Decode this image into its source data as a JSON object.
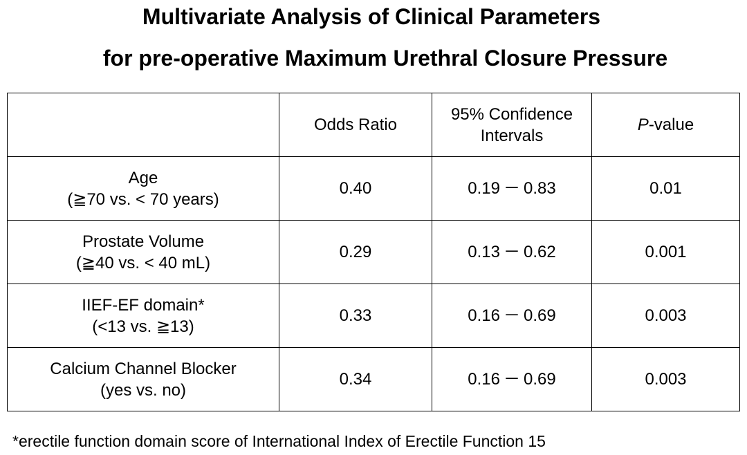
{
  "title": {
    "line1": "Multivariate Analysis of Clinical Parameters",
    "line2": "for pre-operative Maximum Urethral Closure Pressure"
  },
  "table": {
    "headers": {
      "blank": "",
      "odds_ratio": "Odds Ratio",
      "ci_line1": "95% Confidence",
      "ci_line2": "Intervals",
      "p_italic": "P",
      "p_rest": "-value"
    },
    "rows": [
      {
        "name": "Age",
        "detail": "(≧70 vs. < 70 years)",
        "or": "0.40",
        "ci_low": "0.19",
        "ci_sep": "－",
        "ci_high": "0.83",
        "p": "0.01"
      },
      {
        "name": "Prostate Volume",
        "detail": "(≧40 vs. < 40 mL)",
        "or": "0.29",
        "ci_low": "0.13",
        "ci_sep": "－",
        "ci_high": "0.62",
        "p": "0.001"
      },
      {
        "name": "IIEF-EF domain*",
        "detail": "(<13 vs. ≧13)",
        "or": "0.33",
        "ci_low": "0.16",
        "ci_sep": "－",
        "ci_high": "0.69",
        "p": "0.003"
      },
      {
        "name": "Calcium Channel Blocker",
        "detail": "(yes vs. no)",
        "or": "0.34",
        "ci_low": "0.16",
        "ci_sep": "－",
        "ci_high": "0.69",
        "p": "0.003"
      }
    ]
  },
  "footnote": "*erectile function domain score of International Index of Erectile Function 15"
}
